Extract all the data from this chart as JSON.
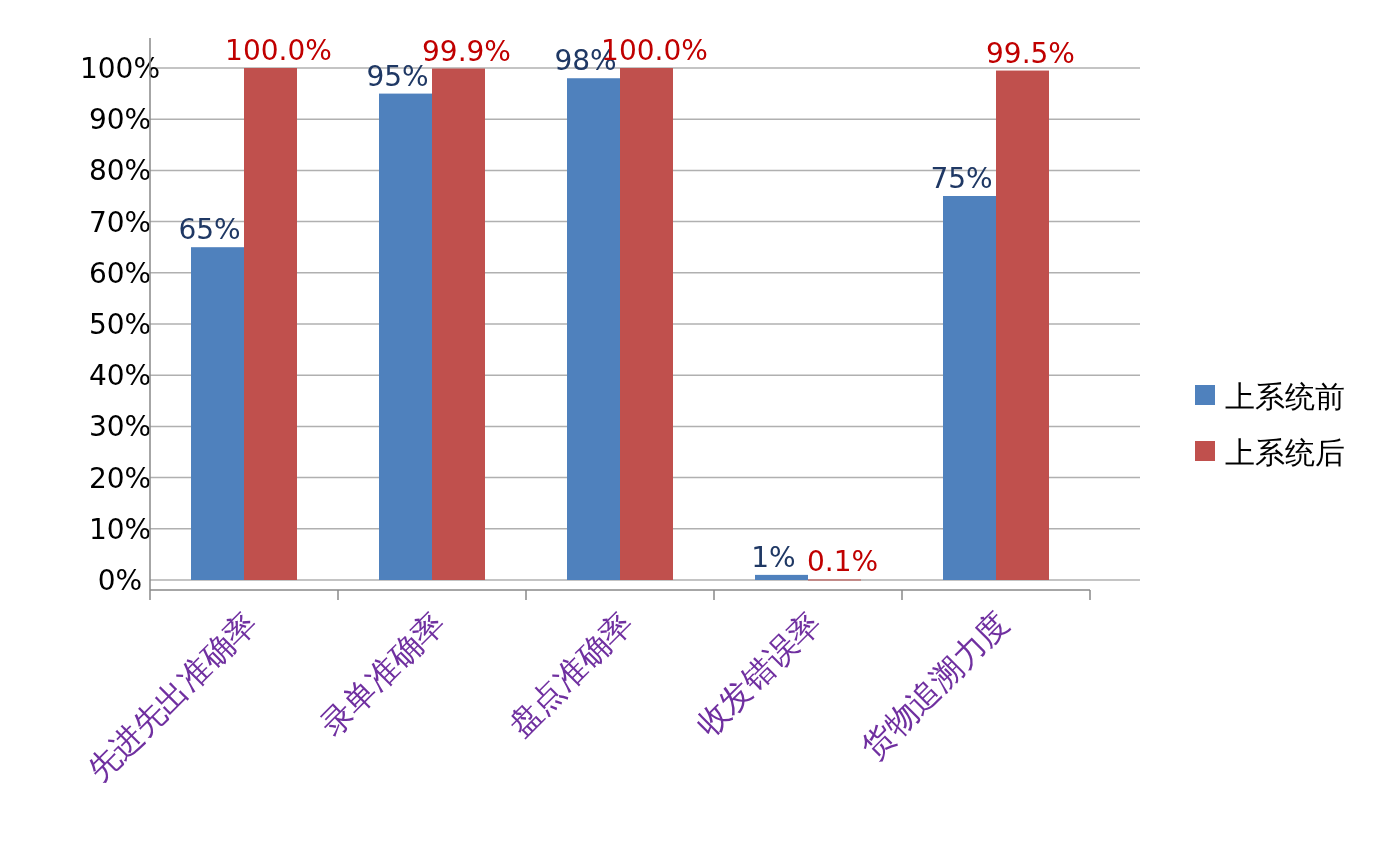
{
  "chart_data": {
    "type": "bar",
    "categories": [
      "先进先出准确率",
      "录单准确率",
      "盘点准确率",
      "收发错误率",
      "货物追溯力度"
    ],
    "series": [
      {
        "name": "上系统前",
        "color": "#4f81bd",
        "values": [
          65,
          95,
          98,
          1,
          75
        ],
        "value_labels": [
          "65%",
          "95%",
          "98%",
          "1%",
          "75%"
        ]
      },
      {
        "name": "上系统后",
        "color": "#c0504d",
        "values": [
          100,
          99.9,
          100,
          0.1,
          99.5
        ],
        "value_labels": [
          "100.0%",
          "99.9%",
          "100.0%",
          "0.1%",
          "99.5%"
        ]
      }
    ],
    "ylim": [
      0,
      100
    ],
    "yticks": [
      {
        "value": 0,
        "label": "0%"
      },
      {
        "value": 10,
        "label": "10%"
      },
      {
        "value": 20,
        "label": "20%"
      },
      {
        "value": 30,
        "label": "30%"
      },
      {
        "value": 40,
        "label": "40%"
      },
      {
        "value": 50,
        "label": "50%"
      },
      {
        "value": 60,
        "label": "60%"
      },
      {
        "value": 70,
        "label": "70%"
      },
      {
        "value": 80,
        "label": "80%"
      },
      {
        "value": 90,
        "label": "90%"
      },
      {
        "value": 100,
        "label": "100%"
      }
    ],
    "grid": "y",
    "legend": "right"
  }
}
